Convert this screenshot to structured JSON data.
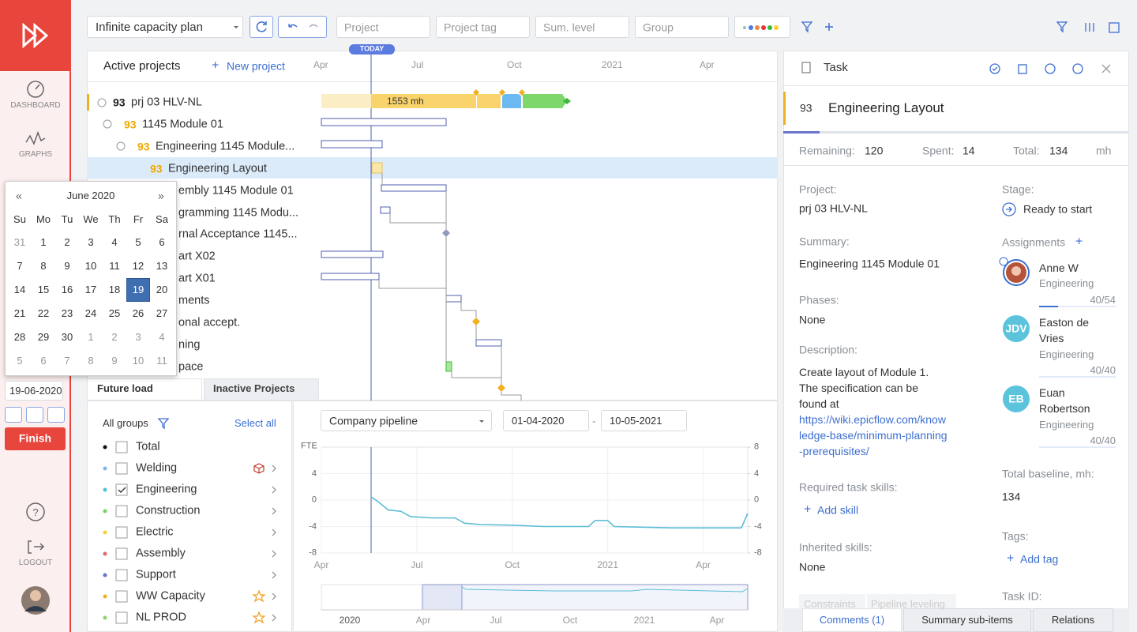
{
  "sidebar": {
    "items": [
      "DASHBOARD",
      "GRAPHS",
      "LOGOUT"
    ]
  },
  "toolbar": {
    "plan": "Infinite capacity plan",
    "filters": [
      "Project",
      "Project tag",
      "Sum. level",
      "Group"
    ]
  },
  "gantt": {
    "title": "Active projects",
    "new_project": "New project",
    "today": "TODAY",
    "timeline": [
      "Apr",
      "Jul",
      "Oct",
      "2021",
      "Apr"
    ],
    "bar_label": "1553 mh",
    "rows": [
      {
        "id": 93,
        "name": "prj 03 HLV-NL"
      },
      {
        "id": 93,
        "name": "1145 Module 01"
      },
      {
        "id": 93,
        "name": "Engineering 1145 Module..."
      },
      {
        "id": 93,
        "name": "Engineering Layout"
      },
      {
        "name": "embly 1145 Module 01"
      },
      {
        "name": "gramming 1145 Modu..."
      },
      {
        "name": "rnal Acceptance 1145..."
      },
      {
        "name": "art X02"
      },
      {
        "name": "art X01"
      },
      {
        "name": "ments"
      },
      {
        "name": "onal accept."
      },
      {
        "name": "ning"
      },
      {
        "name": "pace"
      }
    ]
  },
  "calendar": {
    "prev": "«",
    "title": "June 2020",
    "next": "»",
    "weekdays": [
      "Su",
      "Mo",
      "Tu",
      "We",
      "Th",
      "Fr",
      "Sa"
    ],
    "weeks": [
      [
        31,
        1,
        2,
        3,
        4,
        5,
        6
      ],
      [
        7,
        8,
        9,
        10,
        11,
        12,
        13
      ],
      [
        14,
        15,
        16,
        17,
        18,
        19,
        20
      ],
      [
        21,
        22,
        23,
        24,
        25,
        26,
        27
      ],
      [
        28,
        29,
        30,
        1,
        2,
        3,
        4
      ],
      [
        5,
        6,
        7,
        8,
        9,
        10,
        11
      ]
    ],
    "selected_day": 19
  },
  "date_input": "19-06-2020",
  "finish": "Finish",
  "load_panel": {
    "tabs": [
      "Future load",
      "Inactive Projects"
    ],
    "all_groups": "All groups",
    "select_all": "Select all",
    "groups": [
      {
        "name": "Total",
        "color": "#111111",
        "checked": false
      },
      {
        "name": "Welding",
        "color": "#7fb6e8",
        "checked": false,
        "icon": "cube"
      },
      {
        "name": "Engineering",
        "color": "#4dc3d6",
        "checked": true
      },
      {
        "name": "Construction",
        "color": "#7dcf6a",
        "checked": false
      },
      {
        "name": "Electric",
        "color": "#f5d130",
        "checked": false
      },
      {
        "name": "Assembly",
        "color": "#e06b6b",
        "checked": false
      },
      {
        "name": "Support",
        "color": "#6a73d0",
        "checked": false
      },
      {
        "name": "WW Capacity",
        "color": "#f0b020",
        "checked": false,
        "icon": "star"
      },
      {
        "name": "NL PROD",
        "color": "#8fd46a",
        "checked": false,
        "icon": "star"
      }
    ]
  },
  "load_chart": {
    "type": "line",
    "pipeline": "Company pipeline",
    "date_from": "01-04-2020",
    "separator": "-",
    "date_to": "10-05-2021",
    "ylabel": "FTE",
    "color": "#5bbcd6",
    "grid": true,
    "xlim": [
      0,
      13.4
    ],
    "xticks": [
      {
        "value": 0,
        "label": "Apr"
      },
      {
        "value": 3,
        "label": "Jul"
      },
      {
        "value": 6,
        "label": "Oct"
      },
      {
        "value": 9,
        "label": "2021"
      },
      {
        "value": 12,
        "label": "Apr"
      }
    ],
    "ylim": [
      -8,
      8
    ],
    "yticks": [
      4,
      0,
      -4,
      -8
    ],
    "y2ticks": [
      8,
      4,
      0,
      -4,
      -8
    ],
    "x": [
      1.56,
      1.8,
      2.1,
      2.5,
      2.8,
      3.5,
      4.2,
      4.5,
      5,
      6,
      7,
      8.4,
      8.6,
      9,
      9.2,
      11,
      13.2,
      13.4
    ],
    "values": [
      0.5,
      -0.3,
      -1.5,
      -1.7,
      -2.5,
      -2.7,
      -2.7,
      -3.5,
      -3.7,
      -3.8,
      -4,
      -4,
      -3.1,
      -3.1,
      -4,
      -4.2,
      -4.2,
      -2
    ],
    "overview_labels": [
      "2020",
      "Apr",
      "Jul",
      "Oct",
      "2021",
      "Apr"
    ]
  },
  "task": {
    "header": "Task",
    "id": 93,
    "name": "Engineering Layout",
    "unit": "mh",
    "metrics": [
      {
        "label": "Remaining:",
        "value": 120
      },
      {
        "label": "Spent:",
        "value": 14
      },
      {
        "label": "Total:",
        "value": 134
      }
    ],
    "fields_left": [
      {
        "label": "Project:",
        "value": "prj 03 HLV-NL"
      },
      {
        "label": "Summary:",
        "value": "Engineering 1145 Module 01"
      },
      {
        "label": "Phases:",
        "value": "None"
      }
    ],
    "description": {
      "label": "Description:",
      "text": "Create layout of Module 1. The specification can be found at",
      "link": "https://wiki.epicflow.com/knowledge-base/minimum-planning-prerequisites/"
    },
    "required_skills": {
      "label": "Required task skills:",
      "action": "Add skill"
    },
    "inherited_skills": {
      "label": "Inherited skills:",
      "value": "None"
    },
    "stage": {
      "label": "Stage:",
      "value": "Ready to start"
    },
    "assignments": {
      "label": "Assignments",
      "people": [
        {
          "name": "Anne W",
          "role": "Engineering",
          "hours": "40/54"
        },
        {
          "initials": "JDV",
          "name": "Easton de Vries",
          "role": "Engineering",
          "hours": "40/40"
        },
        {
          "initials": "EB",
          "name": "Euan Robertson",
          "role": "Engineering",
          "hours": "40/40"
        }
      ]
    },
    "total_baseline": {
      "label": "Total baseline, mh:",
      "value": 134
    },
    "tags": {
      "label": "Tags:",
      "action": "Add tag"
    },
    "task_id": {
      "label": "Task ID:"
    },
    "faded_tabs": [
      "Constraints",
      "Pipeline leveling"
    ],
    "tabs": [
      "Comments (1)",
      "Summary sub-items",
      "Relations"
    ]
  }
}
